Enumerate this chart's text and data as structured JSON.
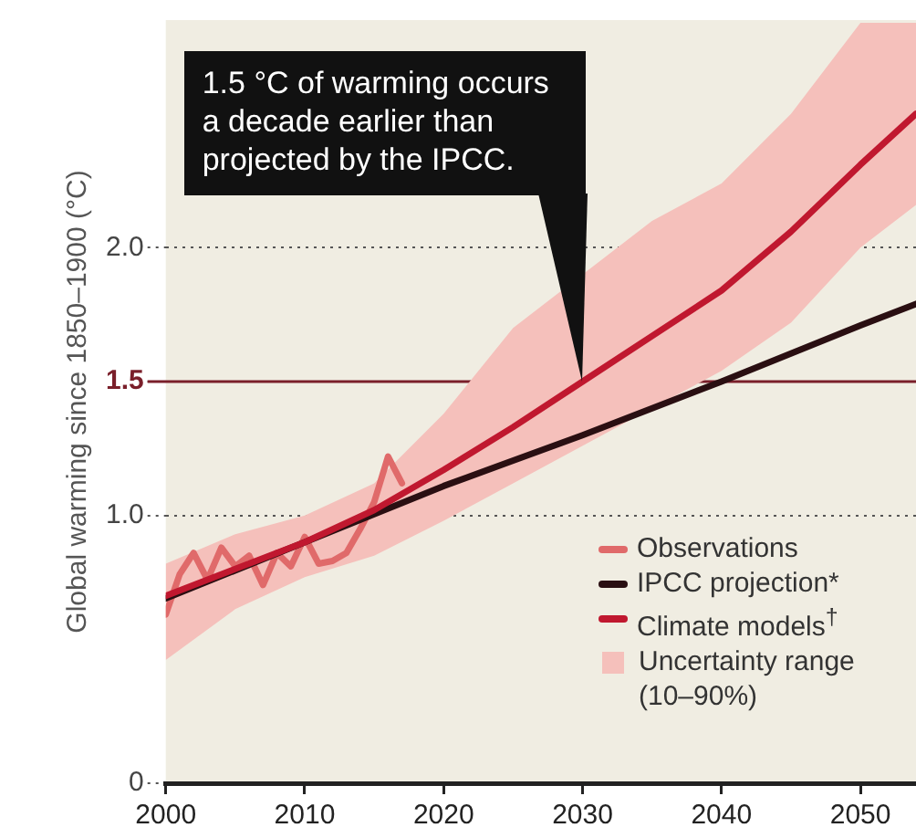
{
  "chart_data": {
    "type": "line",
    "ylabel": "Global warming since 1850–1900 (°C)",
    "xlim": [
      2000,
      2054
    ],
    "ylim": [
      0,
      2.85
    ],
    "xticks": [
      2000,
      2010,
      2020,
      2030,
      2040,
      2050
    ],
    "yticks": [
      0,
      {
        "value": 1,
        "label": "1.0"
      },
      1.5,
      {
        "value": 2,
        "label": "2.0"
      }
    ],
    "grid": "y",
    "legend": "bottom right",
    "ref_lines": [
      {
        "axis": "y",
        "value": 1.5,
        "color": "#7a1f2a"
      }
    ],
    "annotations": [
      {
        "text": "1.5 °C of warming occurs a decade earlier than projected by the IPCC.",
        "x": 2030,
        "y": 1.5
      },
      "Uncertainty range (10–90%)"
    ],
    "series": [
      {
        "name": "Observations",
        "type": "line",
        "color": "#e06a6a",
        "x": [
          2000,
          2001,
          2002,
          2003,
          2004,
          2005,
          2006,
          2007,
          2008,
          2009,
          2010,
          2011,
          2012,
          2013,
          2014,
          2015,
          2016,
          2017
        ],
        "values": [
          0.63,
          0.78,
          0.86,
          0.76,
          0.88,
          0.81,
          0.85,
          0.74,
          0.86,
          0.81,
          0.92,
          0.82,
          0.83,
          0.86,
          0.95,
          1.05,
          1.22,
          1.12
        ]
      },
      {
        "name": "IPCC projection*",
        "type": "line",
        "color": "#2a0f12",
        "x": [
          2000,
          2010,
          2020,
          2030,
          2040,
          2050,
          2054
        ],
        "values": [
          0.69,
          0.9,
          1.11,
          1.3,
          1.5,
          1.71,
          1.79
        ]
      },
      {
        "name": "Climate models$^{†}$",
        "type": "line",
        "color": "#c0182f",
        "x": [
          2000,
          2005,
          2010,
          2015,
          2020,
          2025,
          2030,
          2035,
          2040,
          2045,
          2050,
          2054
        ],
        "values": [
          0.7,
          0.8,
          0.9,
          1.02,
          1.17,
          1.33,
          1.5,
          1.67,
          1.84,
          2.06,
          2.31,
          2.5
        ],
        "lower": [
          0.46,
          0.65,
          0.77,
          0.85,
          0.98,
          1.12,
          null,
          1.4,
          1.54,
          1.72,
          2.0,
          2.16
        ],
        "upper": [
          0.82,
          0.93,
          1.0,
          1.12,
          1.38,
          1.7,
          null,
          2.1,
          2.24,
          2.5,
          2.84,
          2.84
        ]
      }
    ]
  }
}
